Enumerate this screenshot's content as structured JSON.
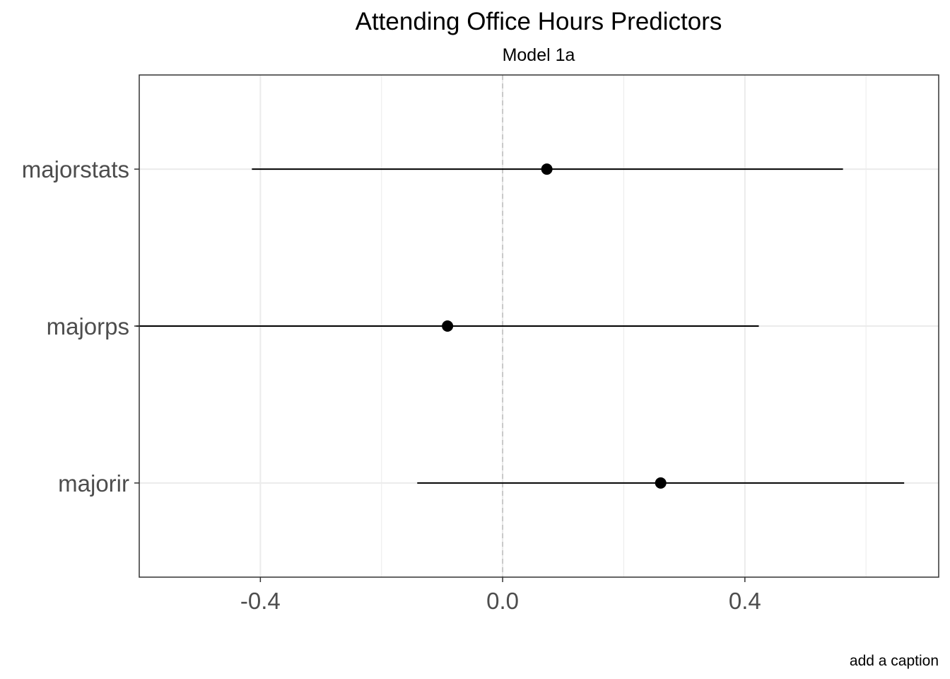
{
  "chart_data": {
    "type": "scatter",
    "subtype": "coefficient-plot",
    "title": "Attending Office Hours Predictors",
    "subtitle": "Model 1a",
    "caption": "add a caption",
    "xlabel": "",
    "ylabel": "",
    "xlim": [
      -0.6,
      0.72
    ],
    "x_ticks": [
      -0.4,
      0.0,
      0.4
    ],
    "x_tick_labels": [
      "-0.4",
      "0.0",
      "0.4"
    ],
    "x_minor_gridlines": [
      -0.6,
      -0.2,
      0.2,
      0.6
    ],
    "categories": [
      "majorstats",
      "majorps",
      "majorir"
    ],
    "series": [
      {
        "estimates": [
          0.073,
          -0.091,
          0.261
        ],
        "lower": [
          -0.414,
          -0.605,
          -0.141
        ],
        "upper": [
          0.562,
          0.423,
          0.663
        ]
      }
    ],
    "reference_line": 0,
    "grid": true,
    "legend": "none",
    "colors": {
      "points": "#000000",
      "lines": "#000000",
      "grid": "#ebebeb",
      "reference": "#bebebe",
      "tick_labels": "#4d4d4d"
    }
  }
}
